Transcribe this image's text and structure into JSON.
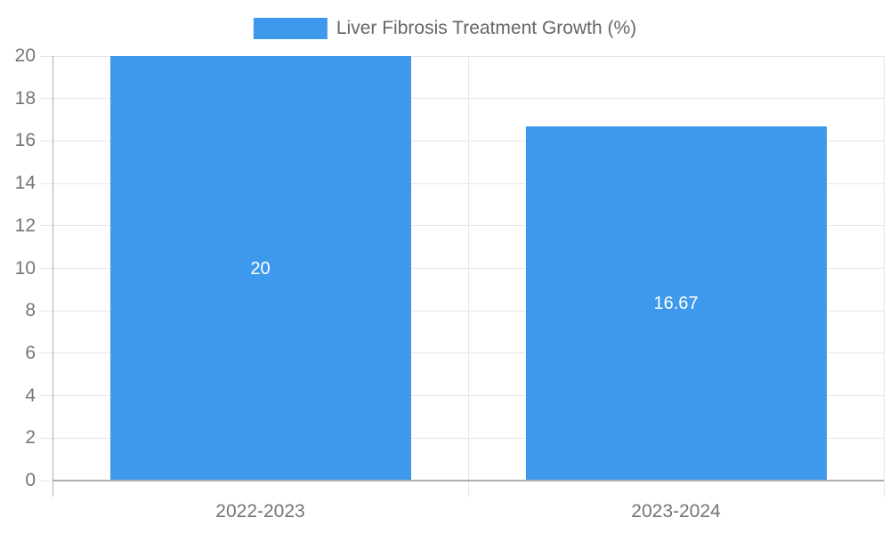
{
  "legend": {
    "label": "Liver Fibrosis Treatment Growth (%)"
  },
  "chart_data": {
    "type": "bar",
    "title": "Liver Fibrosis Treatment Growth (%)",
    "categories": [
      "2022-2023",
      "2023-2024"
    ],
    "values": [
      20,
      16.67
    ],
    "value_labels": [
      "20",
      "16.67"
    ],
    "xlabel": "",
    "ylabel": "",
    "ylim": [
      0,
      20
    ],
    "ytick_step": 2,
    "ytick_labels": [
      "0",
      "2",
      "4",
      "6",
      "8",
      "10",
      "12",
      "14",
      "16",
      "18",
      "20"
    ],
    "grid": "horizontal gridlines on, category boundary verticals on",
    "legend_position": "top-center",
    "colors": {
      "bar": "#3E99ED",
      "value_label": "#FFFFFF",
      "axis_labels": "#757575",
      "legend_text": "#666666",
      "gridline": "#E6E6E6",
      "axis_line": "#ADADAD",
      "background": "#FFFFFF"
    }
  }
}
